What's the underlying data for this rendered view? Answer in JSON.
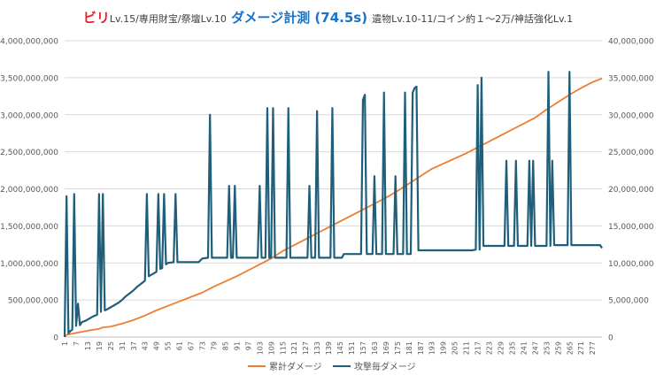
{
  "title": {
    "part1_highlight": "ビリ",
    "part1_detail": "Lv.15/専用財宝/祭壇Lv.10",
    "part2_highlight": "ダメージ計測 (74.5s)",
    "part3_detail": "遺物Lv.10-11/コイン約１～2万/神話強化Lv.1"
  },
  "colors": {
    "cumulative": "#ed7d31",
    "per_attack": "#1f5f7a",
    "grid": "#d9d9d9",
    "axis_text": "#595959",
    "title_red": "#e8202a",
    "title_blue": "#1a73c8"
  },
  "chart_data": {
    "type": "line",
    "grid": true,
    "legend_position": "bottom",
    "y_left": {
      "min": 0,
      "max": 4000000000,
      "ticks": [
        "0",
        "500,000,000",
        "1,000,000,000",
        "1,500,000,000",
        "2,000,000,000",
        "2,500,000,000",
        "3,000,000,000",
        "3,500,000,000",
        "4,000,000,000"
      ]
    },
    "y_right": {
      "min": 0,
      "max": 40000000,
      "ticks": [
        "0",
        "5,000,000",
        "10,000,000",
        "15,000,000",
        "20,000,000",
        "25,000,000",
        "30,000,000",
        "35,000,000",
        "40,000,000"
      ]
    },
    "x": {
      "min": 1,
      "max": 282,
      "tick_labels": [
        "1",
        "7",
        "13",
        "19",
        "25",
        "31",
        "37",
        "43",
        "49",
        "55",
        "61",
        "67",
        "73",
        "79",
        "85",
        "91",
        "97",
        "103",
        "109",
        "115",
        "121",
        "127",
        "133",
        "139",
        "145",
        "151",
        "157",
        "163",
        "169",
        "175",
        "181",
        "187",
        "193",
        "199",
        "205",
        "211",
        "217",
        "223",
        "229",
        "235",
        "241",
        "247",
        "253",
        "259",
        "265",
        "271",
        "277"
      ]
    },
    "series": [
      {
        "name": "累計ダメージ",
        "axis": "left",
        "points": [
          [
            1,
            0
          ],
          [
            2,
            30000000
          ],
          [
            8,
            60000000
          ],
          [
            14,
            90000000
          ],
          [
            19,
            110000000
          ],
          [
            21,
            130000000
          ],
          [
            25,
            140000000
          ],
          [
            31,
            180000000
          ],
          [
            37,
            230000000
          ],
          [
            43,
            290000000
          ],
          [
            49,
            360000000
          ],
          [
            55,
            420000000
          ],
          [
            61,
            480000000
          ],
          [
            67,
            540000000
          ],
          [
            73,
            600000000
          ],
          [
            79,
            680000000
          ],
          [
            85,
            750000000
          ],
          [
            91,
            820000000
          ],
          [
            97,
            900000000
          ],
          [
            103,
            980000000
          ],
          [
            109,
            1060000000
          ],
          [
            115,
            1160000000
          ],
          [
            121,
            1240000000
          ],
          [
            127,
            1320000000
          ],
          [
            133,
            1400000000
          ],
          [
            139,
            1480000000
          ],
          [
            145,
            1560000000
          ],
          [
            151,
            1640000000
          ],
          [
            157,
            1720000000
          ],
          [
            163,
            1800000000
          ],
          [
            169,
            1880000000
          ],
          [
            175,
            1970000000
          ],
          [
            181,
            2070000000
          ],
          [
            187,
            2170000000
          ],
          [
            193,
            2270000000
          ],
          [
            199,
            2340000000
          ],
          [
            205,
            2410000000
          ],
          [
            211,
            2480000000
          ],
          [
            217,
            2560000000
          ],
          [
            223,
            2640000000
          ],
          [
            229,
            2720000000
          ],
          [
            235,
            2800000000
          ],
          [
            241,
            2880000000
          ],
          [
            247,
            2960000000
          ],
          [
            253,
            3070000000
          ],
          [
            259,
            3170000000
          ],
          [
            265,
            3270000000
          ],
          [
            271,
            3360000000
          ],
          [
            277,
            3440000000
          ],
          [
            282,
            3490000000
          ]
        ]
      },
      {
        "name": "攻撃毎ダメージ",
        "axis": "right",
        "points": [
          [
            1,
            0
          ],
          [
            2,
            19000000
          ],
          [
            3,
            500000
          ],
          [
            4,
            800000
          ],
          [
            5,
            1000000
          ],
          [
            6,
            19300000
          ],
          [
            7,
            1500000
          ],
          [
            8,
            4500000
          ],
          [
            9,
            1600000
          ],
          [
            10,
            2000000
          ],
          [
            12,
            2200000
          ],
          [
            14,
            2500000
          ],
          [
            16,
            2800000
          ],
          [
            18,
            3000000
          ],
          [
            19,
            19300000
          ],
          [
            20,
            3400000
          ],
          [
            21,
            19300000
          ],
          [
            22,
            3600000
          ],
          [
            23,
            3700000
          ],
          [
            25,
            4000000
          ],
          [
            27,
            4300000
          ],
          [
            29,
            4600000
          ],
          [
            31,
            5000000
          ],
          [
            33,
            5500000
          ],
          [
            35,
            5900000
          ],
          [
            37,
            6300000
          ],
          [
            39,
            6800000
          ],
          [
            41,
            7200000
          ],
          [
            43,
            7600000
          ],
          [
            44,
            19300000
          ],
          [
            45,
            8200000
          ],
          [
            47,
            8500000
          ],
          [
            49,
            8800000
          ],
          [
            50,
            19300000
          ],
          [
            51,
            9200000
          ],
          [
            52,
            9300000
          ],
          [
            53,
            19300000
          ],
          [
            54,
            9800000
          ],
          [
            55,
            10000000
          ],
          [
            58,
            10100000
          ],
          [
            59,
            19300000
          ],
          [
            60,
            10100000
          ],
          [
            71,
            10100000
          ],
          [
            73,
            10600000
          ],
          [
            76,
            10700000
          ],
          [
            77,
            30000000
          ],
          [
            78,
            10700000
          ],
          [
            86,
            10700000
          ],
          [
            87,
            20400000
          ],
          [
            88,
            10700000
          ],
          [
            89,
            10700000
          ],
          [
            90,
            20400000
          ],
          [
            91,
            10700000
          ],
          [
            102,
            10700000
          ],
          [
            103,
            20400000
          ],
          [
            104,
            10700000
          ],
          [
            106,
            10700000
          ],
          [
            107,
            30900000
          ],
          [
            108,
            10700000
          ],
          [
            109,
            10700000
          ],
          [
            110,
            30900000
          ],
          [
            111,
            10700000
          ],
          [
            117,
            10700000
          ],
          [
            118,
            30900000
          ],
          [
            119,
            10700000
          ],
          [
            128,
            10700000
          ],
          [
            129,
            20400000
          ],
          [
            130,
            10700000
          ],
          [
            132,
            10700000
          ],
          [
            133,
            30500000
          ],
          [
            134,
            10700000
          ],
          [
            140,
            10700000
          ],
          [
            141,
            30900000
          ],
          [
            142,
            10700000
          ],
          [
            146,
            10700000
          ],
          [
            147,
            11200000
          ],
          [
            156,
            11200000
          ],
          [
            157,
            32000000
          ],
          [
            158,
            32700000
          ],
          [
            159,
            11200000
          ],
          [
            162,
            11200000
          ],
          [
            163,
            21700000
          ],
          [
            164,
            11200000
          ],
          [
            167,
            11200000
          ],
          [
            168,
            33000000
          ],
          [
            169,
            11200000
          ],
          [
            173,
            11200000
          ],
          [
            174,
            21700000
          ],
          [
            175,
            11200000
          ],
          [
            178,
            11200000
          ],
          [
            179,
            33000000
          ],
          [
            180,
            11200000
          ],
          [
            182,
            11200000
          ],
          [
            183,
            33000000
          ],
          [
            184,
            33600000
          ],
          [
            185,
            33800000
          ],
          [
            186,
            11700000
          ],
          [
            214,
            11700000
          ],
          [
            216,
            11800000
          ],
          [
            217,
            34000000
          ],
          [
            218,
            11800000
          ],
          [
            219,
            35000000
          ],
          [
            220,
            12300000
          ],
          [
            231,
            12300000
          ],
          [
            232,
            23800000
          ],
          [
            233,
            12300000
          ],
          [
            236,
            12300000
          ],
          [
            237,
            23800000
          ],
          [
            238,
            12300000
          ],
          [
            243,
            12300000
          ],
          [
            244,
            23800000
          ],
          [
            245,
            12300000
          ],
          [
            246,
            23800000
          ],
          [
            247,
            12300000
          ],
          [
            253,
            12300000
          ],
          [
            254,
            35800000
          ],
          [
            255,
            12300000
          ],
          [
            256,
            23800000
          ],
          [
            257,
            12400000
          ],
          [
            264,
            12400000
          ],
          [
            265,
            35800000
          ],
          [
            266,
            12400000
          ],
          [
            281,
            12400000
          ],
          [
            282,
            12000000
          ]
        ]
      }
    ]
  }
}
